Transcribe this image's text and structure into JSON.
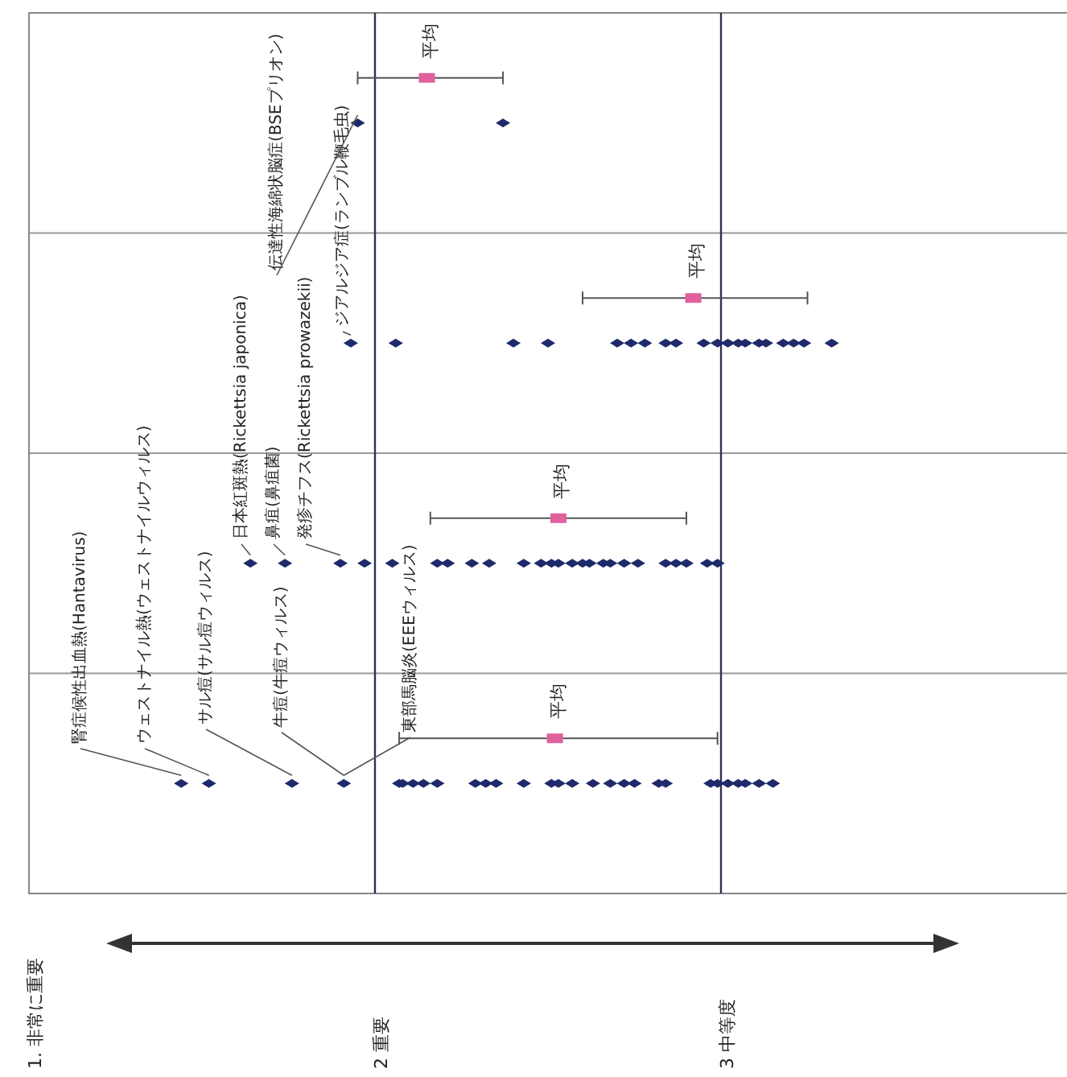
{
  "chart_data": {
    "type": "scatter",
    "orientation": "horizontal",
    "categories": [
      null,
      null,
      null,
      null
    ],
    "xlim": [
      1,
      4
    ],
    "xticks": [
      {
        "value": 1,
        "label": "1. 非常に重要"
      },
      {
        "value": 2,
        "label": "2 重要"
      },
      {
        "value": 3,
        "label": "3 中等度"
      }
    ],
    "grid": "x",
    "marker": "diamond",
    "legend": false,
    "series": [
      {
        "color": "#1f2a6b",
        "values": [
          1.95,
          1.93,
          1.64,
          1.44
        ]
      },
      {
        "color": "#1f2a6b",
        "values": [
          2.37,
          2.06,
          1.74,
          1.52
        ]
      },
      {
        "color": "#1f2a6b",
        "values": [
          null,
          2.4,
          1.9,
          1.76
        ]
      },
      {
        "color": "#1f2a6b",
        "values": [
          null,
          2.5,
          1.97,
          1.91
        ]
      },
      {
        "color": "#1f2a6b",
        "values": [
          null,
          2.7,
          2.05,
          2.07
        ]
      },
      {
        "color": "#1f2a6b",
        "values": [
          null,
          2.74,
          2.18,
          2.08
        ]
      },
      {
        "color": "#1f2a6b",
        "values": [
          null,
          2.78,
          2.21,
          2.11
        ]
      },
      {
        "color": "#1f2a6b",
        "values": [
          null,
          2.84,
          2.28,
          2.14
        ]
      },
      {
        "color": "#1f2a6b",
        "values": [
          null,
          2.87,
          2.33,
          2.18
        ]
      },
      {
        "color": "#1f2a6b",
        "values": [
          null,
          2.95,
          2.43,
          2.29
        ]
      },
      {
        "color": "#1f2a6b",
        "values": [
          null,
          2.99,
          2.48,
          2.32
        ]
      },
      {
        "color": "#1f2a6b",
        "values": [
          null,
          3.02,
          2.51,
          2.35
        ]
      },
      {
        "color": "#1f2a6b",
        "values": [
          null,
          3.05,
          2.53,
          2.43
        ]
      },
      {
        "color": "#1f2a6b",
        "values": [
          null,
          3.07,
          2.57,
          2.51
        ]
      },
      {
        "color": "#1f2a6b",
        "values": [
          null,
          3.11,
          2.6,
          2.53
        ]
      },
      {
        "color": "#1f2a6b",
        "values": [
          null,
          3.13,
          2.62,
          2.57
        ]
      },
      {
        "color": "#1f2a6b",
        "values": [
          null,
          3.18,
          2.66,
          2.63
        ]
      },
      {
        "color": "#1f2a6b",
        "values": [
          null,
          3.21,
          2.68,
          2.68
        ]
      },
      {
        "color": "#1f2a6b",
        "values": [
          null,
          3.24,
          2.72,
          2.72
        ]
      },
      {
        "color": "#1f2a6b",
        "values": [
          null,
          3.32,
          2.76,
          2.75
        ]
      },
      {
        "color": "#1f2a6b",
        "values": [
          null,
          null,
          2.84,
          2.82
        ]
      },
      {
        "color": "#1f2a6b",
        "values": [
          null,
          null,
          2.87,
          2.84
        ]
      },
      {
        "color": "#1f2a6b",
        "values": [
          null,
          null,
          2.9,
          2.97
        ]
      },
      {
        "color": "#1f2a6b",
        "values": [
          null,
          null,
          2.96,
          2.99
        ]
      },
      {
        "color": "#1f2a6b",
        "values": [
          null,
          null,
          2.99,
          3.02
        ]
      },
      {
        "color": "#1f2a6b",
        "values": [
          null,
          null,
          null,
          3.05
        ]
      },
      {
        "color": "#1f2a6b",
        "values": [
          null,
          null,
          null,
          3.07
        ]
      },
      {
        "color": "#1f2a6b",
        "values": [
          null,
          null,
          null,
          3.11
        ]
      },
      {
        "color": "#1f2a6b",
        "values": [
          null,
          null,
          null,
          3.15
        ]
      },
      {
        "name": "平均",
        "color": "#e0609e",
        "marker": "square",
        "values": [
          2.15,
          2.92,
          2.53,
          2.52
        ],
        "errors": [
          [
            1.95,
            2.37
          ],
          [
            2.6,
            3.25
          ],
          [
            2.16,
            2.9
          ],
          [
            2.07,
            2.99
          ]
        ]
      }
    ],
    "annotations": [
      {
        "text": "腎症候性出血熱(Hantavirus)",
        "x": 1.44
      },
      {
        "text": "ウェストナイル熱(ウェストナイルウィルス)",
        "x": 1.52
      },
      {
        "text": "サル痘(サル痘ウィルス)",
        "x": 1.76
      },
      {
        "text": "牛痘(牛痘ウィルス)",
        "x": 1.91
      },
      {
        "text": "東部馬脳炎(EEEウィルス)",
        "x": 1.91
      },
      {
        "text": "日本紅斑熱(Rickettsia japonica)",
        "x": 1.64
      },
      {
        "text": "鼻疽(鼻疽菌)",
        "x": 1.74
      },
      {
        "text": "発疹チフス(Rickettsia prowazekii)",
        "x": 1.9
      },
      {
        "text": "ジアルジア症(ランブル鞭毛虫)",
        "x": 1.93
      },
      {
        "text": "伝達性海綿状脳症(BSEプリオン)",
        "x": 1.95
      }
    ]
  }
}
